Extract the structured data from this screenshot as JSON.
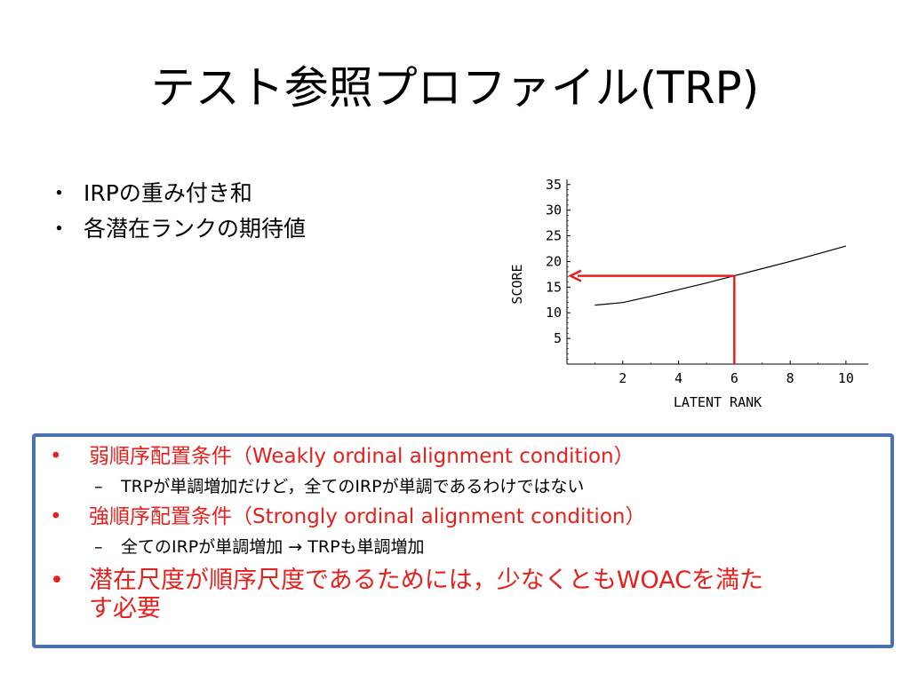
{
  "slide": {
    "title": "テスト参照プロファイル(TRP)"
  },
  "top_bullets": [
    {
      "marker": "・",
      "text": "IRPの重み付き和"
    },
    {
      "marker": "・",
      "text": "各潜在ランクの期待値"
    }
  ],
  "box": {
    "border_color": "#4a72b0",
    "text_red": "#e8201c",
    "items": [
      {
        "marker": "•",
        "text": "弱順序配置条件（Weakly ordinal alignment condition）"
      },
      {
        "marker": "–",
        "text": "TRPが単調増加だけど，全てのIRPが単調であるわけではない"
      },
      {
        "marker": "•",
        "text": "強順序配置条件（Strongly ordinal alignment condition）"
      },
      {
        "marker": "–",
        "text": "全てのIRPが単調増加 → TRPも単調増加"
      },
      {
        "marker": "•",
        "text_line1": "潜在尺度が順序尺度であるためには，少なくともWOACを満た",
        "text_line2": "す必要"
      }
    ]
  },
  "chart_data": {
    "type": "line",
    "xlabel": "LATENT RANK",
    "ylabel": "SCORE",
    "xlim": [
      0,
      10.8
    ],
    "ylim": [
      0,
      36
    ],
    "x_ticks": [
      2,
      4,
      6,
      8,
      10
    ],
    "y_ticks": [
      5,
      10,
      15,
      20,
      25,
      30,
      35
    ],
    "grid": false,
    "series": [
      {
        "x": [
          1,
          2,
          3,
          4,
          5,
          6,
          7,
          8,
          9,
          10
        ],
        "values": [
          11.5,
          12.0,
          13.2,
          14.5,
          15.8,
          17.2,
          18.6,
          20.0,
          21.5,
          23.0
        ],
        "color": "#000000"
      }
    ],
    "annotation": {
      "x": 6,
      "y": 17.2,
      "color": "#e8201c",
      "style": "arrow from x-axis up to curve then left to y-axis"
    }
  }
}
